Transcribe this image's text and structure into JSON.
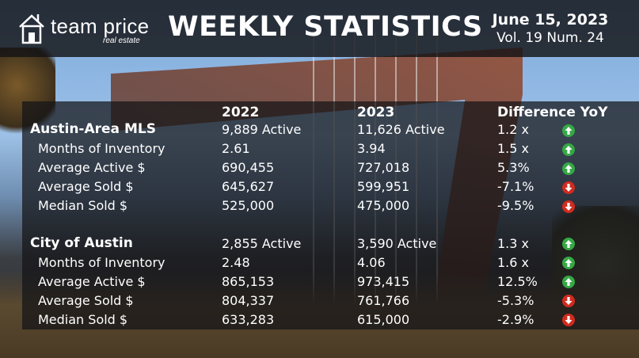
{
  "header": {
    "brand_name": "team price",
    "brand_sub": "real estate",
    "title": "WEEKLY STATISTICS",
    "date": "June 15, 2023",
    "volume": "Vol. 19 Num. 24"
  },
  "columns": {
    "col_2022": "2022",
    "col_2023": "2023",
    "col_diff": "Difference YoY"
  },
  "sections": [
    {
      "name": "Austin-Area MLS",
      "active_2022": "9,889 Active",
      "active_2023": "11,626  Active",
      "active_diff": "1.2 x",
      "active_trend": "up",
      "rows": [
        {
          "label": "Months of Inventory",
          "v2022": "2.61",
          "v2023": "3.94",
          "diff": "1.5 x",
          "trend": "up"
        },
        {
          "label": "Average Active $",
          "v2022": "690,455",
          "v2023": "727,018",
          "diff": "5.3%",
          "trend": "up"
        },
        {
          "label": "Average Sold $",
          "v2022": "645,627",
          "v2023": "599,951",
          "diff": "-7.1%",
          "trend": "down"
        },
        {
          "label": "Median Sold $",
          "v2022": "525,000",
          "v2023": "475,000",
          "diff": "-9.5%",
          "trend": "down"
        }
      ]
    },
    {
      "name": "City of Austin",
      "active_2022": "2,855 Active",
      "active_2023": "3,590  Active",
      "active_diff": "1.3 x",
      "active_trend": "up",
      "rows": [
        {
          "label": "Months of Inventory",
          "v2022": "2.48",
          "v2023": "4.06",
          "diff": "1.6 x",
          "trend": "up"
        },
        {
          "label": "Average Active $",
          "v2022": "865,153",
          "v2023": "973,415",
          "diff": "12.5%",
          "trend": "up"
        },
        {
          "label": "Average Sold $",
          "v2022": "804,337",
          "v2023": "761,766",
          "diff": "-5.3%",
          "trend": "down"
        },
        {
          "label": "Median Sold $",
          "v2022": "633,283",
          "v2023": "615,000",
          "diff": "-2.9%",
          "trend": "down"
        }
      ]
    }
  ],
  "colors": {
    "up": "#36a846",
    "down": "#d12b1f"
  },
  "icons": {
    "up": "arrow-up-icon",
    "down": "arrow-down-icon"
  }
}
